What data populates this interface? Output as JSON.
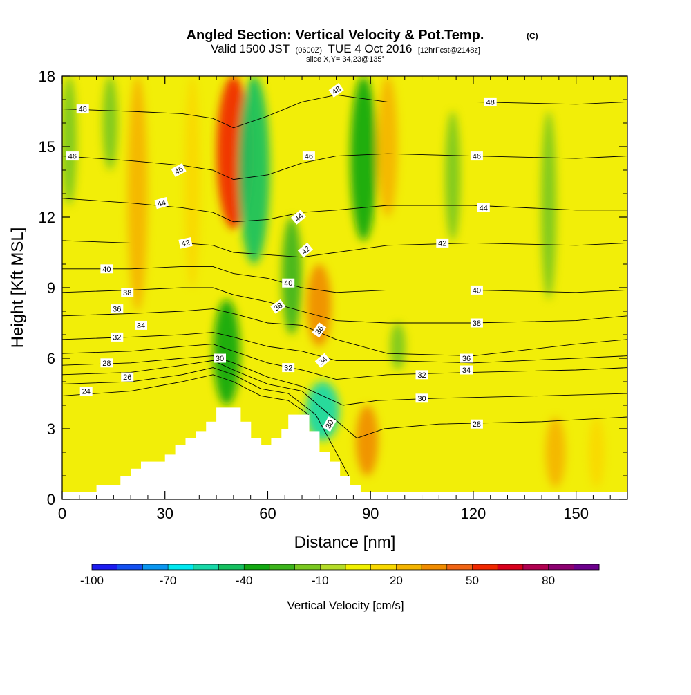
{
  "chart_data": {
    "type": "heatmap",
    "title": "Angled Section: Vertical Velocity & Pot.Temp.",
    "title_mark": "(C)",
    "subtitle_parts": [
      "Valid 1500 JST",
      "(0600Z)",
      "TUE 4 Oct 2016",
      "[12hrFcst@2148z]"
    ],
    "slice_text": "slice X,Y= 34,23@135°",
    "xlabel": "Distance [nm]",
    "ylabel": "Height [Kft MSL]",
    "xlim": [
      0,
      165
    ],
    "ylim": [
      0,
      18
    ],
    "x_ticks": [
      0,
      30,
      60,
      90,
      120,
      150
    ],
    "y_ticks": [
      0,
      3,
      6,
      9,
      12,
      15,
      18
    ],
    "grid": false,
    "colorbar": {
      "label": "Vertical Velocity [cm/s]",
      "tick_labels": [
        -100,
        -70,
        -40,
        -10,
        20,
        50,
        80
      ],
      "levels": [
        -100,
        -90,
        -80,
        -70,
        -60,
        -50,
        -40,
        -30,
        -20,
        -10,
        0,
        10,
        20,
        30,
        40,
        50,
        60,
        70,
        80,
        90
      ],
      "colors": [
        "#1c1cf0",
        "#1450f0",
        "#0a96f0",
        "#00e8f0",
        "#18d8a8",
        "#16c060",
        "#12a812",
        "#3cb41c",
        "#7ac820",
        "#b4dc28",
        "#f0f000",
        "#f8d800",
        "#f4b400",
        "#f08c00",
        "#f06414",
        "#f02800",
        "#d8001c",
        "#b00050",
        "#8c0070",
        "#6c008c"
      ]
    },
    "background_value_range": [
      -10,
      10
    ],
    "velocity_features": [
      {
        "x": 2,
        "y_range": [
          12.5,
          18
        ],
        "value": -15
      },
      {
        "x": 14,
        "y_range": [
          14,
          18
        ],
        "value": -15
      },
      {
        "x": 22,
        "y_range": [
          8,
          18
        ],
        "value": 25
      },
      {
        "x": 38,
        "y_range": [
          9,
          18
        ],
        "value": 15
      },
      {
        "x": 50,
        "y_range": [
          11.5,
          18
        ],
        "value": 55
      },
      {
        "x": 56,
        "y_range": [
          10,
          18
        ],
        "value": -50
      },
      {
        "x": 48,
        "y_range": [
          4,
          8.5
        ],
        "value": -40
      },
      {
        "x": 67,
        "y_range": [
          7,
          12
        ],
        "value": -25
      },
      {
        "x": 75,
        "y_range": [
          6.5,
          10
        ],
        "value": 35
      },
      {
        "x": 76,
        "y_range": [
          2.5,
          5
        ],
        "value": -55
      },
      {
        "x": 88,
        "y_range": [
          11,
          18
        ],
        "value": -40
      },
      {
        "x": 95,
        "y_range": [
          12,
          18
        ],
        "value": 25
      },
      {
        "x": 89,
        "y_range": [
          1,
          4
        ],
        "value": 30
      },
      {
        "x": 98,
        "y_range": [
          5.5,
          7.5
        ],
        "value": -15
      },
      {
        "x": 114,
        "y_range": [
          11,
          16.5
        ],
        "value": -15
      },
      {
        "x": 142,
        "y_range": [
          8.5,
          16.5
        ],
        "value": -15
      },
      {
        "x": 144,
        "y_range": [
          0.5,
          3.5
        ],
        "value": 25
      },
      {
        "x": 156,
        "y_range": [
          0.5,
          3.5
        ],
        "value": 15
      }
    ],
    "terrain": [
      {
        "x": [
          0,
          10
        ],
        "top": 0.3
      },
      {
        "x": [
          10,
          17
        ],
        "top": 0.6
      },
      {
        "x": [
          17,
          20
        ],
        "top": 1.0
      },
      {
        "x": [
          20,
          23
        ],
        "top": 1.3
      },
      {
        "x": [
          23,
          30
        ],
        "top": 1.6
      },
      {
        "x": [
          30,
          33
        ],
        "top": 1.9
      },
      {
        "x": [
          33,
          36
        ],
        "top": 2.3
      },
      {
        "x": [
          36,
          39
        ],
        "top": 2.6
      },
      {
        "x": [
          39,
          42
        ],
        "top": 2.9
      },
      {
        "x": [
          42,
          45
        ],
        "top": 3.3
      },
      {
        "x": [
          45,
          52
        ],
        "top": 3.9
      },
      {
        "x": [
          52,
          55
        ],
        "top": 3.3
      },
      {
        "x": [
          55,
          58
        ],
        "top": 2.6
      },
      {
        "x": [
          58,
          61
        ],
        "top": 2.3
      },
      {
        "x": [
          61,
          64
        ],
        "top": 2.6
      },
      {
        "x": [
          64,
          66
        ],
        "top": 3.0
      },
      {
        "x": [
          66,
          72
        ],
        "top": 3.6
      },
      {
        "x": [
          72,
          75
        ],
        "top": 2.9
      },
      {
        "x": [
          75,
          78
        ],
        "top": 2.0
      },
      {
        "x": [
          78,
          81
        ],
        "top": 1.6
      },
      {
        "x": [
          81,
          84
        ],
        "top": 1.0
      },
      {
        "x": [
          84,
          87
        ],
        "top": 0.6
      },
      {
        "x": [
          87,
          165
        ],
        "top": 0.3
      }
    ],
    "contours": [
      {
        "value": 24,
        "points": [
          [
            0,
            4.4
          ],
          [
            20,
            4.6
          ],
          [
            35,
            5.0
          ],
          [
            44,
            5.3
          ],
          [
            50,
            5.0
          ],
          [
            58,
            4.4
          ],
          [
            66,
            4.2
          ],
          [
            72,
            3.6
          ]
        ]
      },
      {
        "value": 26,
        "points": [
          [
            0,
            4.9
          ],
          [
            20,
            5.0
          ],
          [
            35,
            5.3
          ],
          [
            44,
            5.6
          ],
          [
            50,
            5.3
          ],
          [
            58,
            4.7
          ],
          [
            66,
            4.5
          ],
          [
            74,
            3.6
          ],
          [
            80,
            2.0
          ],
          [
            84,
            0.9
          ]
        ]
      },
      {
        "value": 28,
        "points": [
          [
            0,
            5.3
          ],
          [
            20,
            5.4
          ],
          [
            35,
            5.7
          ],
          [
            44,
            5.9
          ],
          [
            50,
            5.5
          ],
          [
            60,
            4.9
          ],
          [
            70,
            4.6
          ],
          [
            78,
            3.6
          ],
          [
            86,
            2.6
          ],
          [
            94,
            3.0
          ],
          [
            110,
            3.2
          ],
          [
            140,
            3.3
          ],
          [
            165,
            3.5
          ]
        ]
      },
      {
        "value": 30,
        "points": [
          [
            0,
            5.7
          ],
          [
            20,
            5.8
          ],
          [
            35,
            6.0
          ],
          [
            44,
            6.1
          ],
          [
            50,
            5.8
          ],
          [
            60,
            5.2
          ],
          [
            70,
            4.8
          ],
          [
            82,
            4.0
          ],
          [
            92,
            4.2
          ],
          [
            110,
            4.3
          ],
          [
            140,
            4.4
          ],
          [
            165,
            4.5
          ]
        ]
      },
      {
        "value": 32,
        "points": [
          [
            0,
            6.2
          ],
          [
            20,
            6.3
          ],
          [
            35,
            6.5
          ],
          [
            44,
            6.6
          ],
          [
            50,
            6.3
          ],
          [
            60,
            5.8
          ],
          [
            70,
            5.5
          ],
          [
            80,
            5.1
          ],
          [
            95,
            5.3
          ],
          [
            120,
            5.4
          ],
          [
            150,
            5.5
          ],
          [
            165,
            5.6
          ]
        ]
      },
      {
        "value": 34,
        "points": [
          [
            0,
            6.8
          ],
          [
            20,
            6.9
          ],
          [
            35,
            7.0
          ],
          [
            44,
            7.1
          ],
          [
            50,
            6.9
          ],
          [
            60,
            6.5
          ],
          [
            70,
            6.3
          ],
          [
            80,
            5.9
          ],
          [
            95,
            5.9
          ],
          [
            120,
            5.8
          ],
          [
            150,
            6.0
          ],
          [
            165,
            6.1
          ]
        ]
      },
      {
        "value": 36,
        "points": [
          [
            0,
            7.8
          ],
          [
            20,
            7.9
          ],
          [
            35,
            8.0
          ],
          [
            44,
            8.1
          ],
          [
            50,
            7.9
          ],
          [
            60,
            7.5
          ],
          [
            70,
            7.4
          ],
          [
            80,
            6.8
          ],
          [
            95,
            6.2
          ],
          [
            120,
            6.1
          ],
          [
            150,
            6.6
          ],
          [
            165,
            6.8
          ]
        ]
      },
      {
        "value": 38,
        "points": [
          [
            0,
            8.8
          ],
          [
            20,
            8.9
          ],
          [
            35,
            9.0
          ],
          [
            44,
            9.0
          ],
          [
            50,
            8.7
          ],
          [
            60,
            8.4
          ],
          [
            70,
            8.0
          ],
          [
            80,
            7.6
          ],
          [
            95,
            7.5
          ],
          [
            120,
            7.5
          ],
          [
            150,
            7.6
          ],
          [
            165,
            7.8
          ]
        ]
      },
      {
        "value": 40,
        "points": [
          [
            0,
            9.8
          ],
          [
            20,
            9.8
          ],
          [
            35,
            9.9
          ],
          [
            44,
            9.9
          ],
          [
            50,
            9.6
          ],
          [
            60,
            9.4
          ],
          [
            70,
            9.0
          ],
          [
            80,
            8.8
          ],
          [
            95,
            8.9
          ],
          [
            120,
            8.9
          ],
          [
            150,
            8.8
          ],
          [
            165,
            8.9
          ]
        ]
      },
      {
        "value": 42,
        "points": [
          [
            0,
            11.0
          ],
          [
            20,
            10.9
          ],
          [
            35,
            10.9
          ],
          [
            44,
            10.8
          ],
          [
            50,
            10.5
          ],
          [
            60,
            10.4
          ],
          [
            70,
            10.3
          ],
          [
            80,
            10.5
          ],
          [
            95,
            10.8
          ],
          [
            120,
            10.9
          ],
          [
            150,
            10.8
          ],
          [
            165,
            10.9
          ]
        ]
      },
      {
        "value": 44,
        "points": [
          [
            0,
            12.8
          ],
          [
            20,
            12.6
          ],
          [
            35,
            12.4
          ],
          [
            44,
            12.2
          ],
          [
            50,
            11.8
          ],
          [
            60,
            11.9
          ],
          [
            70,
            12.2
          ],
          [
            80,
            12.3
          ],
          [
            95,
            12.5
          ],
          [
            120,
            12.5
          ],
          [
            150,
            12.3
          ],
          [
            165,
            12.3
          ]
        ]
      },
      {
        "value": 46,
        "points": [
          [
            0,
            14.6
          ],
          [
            20,
            14.4
          ],
          [
            35,
            14.2
          ],
          [
            44,
            14.0
          ],
          [
            50,
            13.6
          ],
          [
            60,
            13.8
          ],
          [
            70,
            14.3
          ],
          [
            80,
            14.6
          ],
          [
            95,
            14.7
          ],
          [
            120,
            14.6
          ],
          [
            150,
            14.5
          ],
          [
            165,
            14.6
          ]
        ]
      },
      {
        "value": 48,
        "points": [
          [
            0,
            16.6
          ],
          [
            20,
            16.5
          ],
          [
            35,
            16.4
          ],
          [
            44,
            16.2
          ],
          [
            50,
            15.8
          ],
          [
            60,
            16.3
          ],
          [
            70,
            16.9
          ],
          [
            80,
            17.2
          ],
          [
            95,
            16.9
          ],
          [
            120,
            16.9
          ],
          [
            150,
            16.8
          ],
          [
            165,
            16.9
          ]
        ]
      }
    ],
    "contour_labels": [
      {
        "text": "48",
        "x": 6,
        "y": 16.6,
        "rot": 0
      },
      {
        "text": "46",
        "x": 3,
        "y": 14.6,
        "rot": 0
      },
      {
        "text": "46",
        "x": 34,
        "y": 14.0,
        "rot": -28
      },
      {
        "text": "44",
        "x": 29,
        "y": 12.6,
        "rot": -15
      },
      {
        "text": "42",
        "x": 36,
        "y": 10.9,
        "rot": -12
      },
      {
        "text": "40",
        "x": 13,
        "y": 9.8,
        "rot": 0
      },
      {
        "text": "38",
        "x": 19,
        "y": 8.8,
        "rot": 0
      },
      {
        "text": "36",
        "x": 16,
        "y": 8.1,
        "rot": 0
      },
      {
        "text": "34",
        "x": 23,
        "y": 7.4,
        "rot": 0
      },
      {
        "text": "32",
        "x": 16,
        "y": 6.9,
        "rot": 0
      },
      {
        "text": "30",
        "x": 46,
        "y": 6.0,
        "rot": 0
      },
      {
        "text": "28",
        "x": 13,
        "y": 5.8,
        "rot": 0
      },
      {
        "text": "26",
        "x": 19,
        "y": 5.2,
        "rot": 0
      },
      {
        "text": "24",
        "x": 7,
        "y": 4.6,
        "rot": 0
      },
      {
        "text": "48",
        "x": 80,
        "y": 17.4,
        "rot": -35
      },
      {
        "text": "46",
        "x": 72,
        "y": 14.6,
        "rot": 0
      },
      {
        "text": "44",
        "x": 69,
        "y": 12.0,
        "rot": -40
      },
      {
        "text": "42",
        "x": 71,
        "y": 10.6,
        "rot": -40
      },
      {
        "text": "40",
        "x": 66,
        "y": 9.2,
        "rot": 0
      },
      {
        "text": "38",
        "x": 63,
        "y": 8.2,
        "rot": -35
      },
      {
        "text": "36",
        "x": 75,
        "y": 7.2,
        "rot": -55
      },
      {
        "text": "34",
        "x": 76,
        "y": 5.9,
        "rot": -40
      },
      {
        "text": "32",
        "x": 66,
        "y": 5.6,
        "rot": 0
      },
      {
        "text": "30",
        "x": 78,
        "y": 3.2,
        "rot": -60
      },
      {
        "text": "48",
        "x": 125,
        "y": 16.9,
        "rot": 0
      },
      {
        "text": "46",
        "x": 121,
        "y": 14.6,
        "rot": 0
      },
      {
        "text": "44",
        "x": 123,
        "y": 12.4,
        "rot": 0
      },
      {
        "text": "42",
        "x": 111,
        "y": 10.9,
        "rot": 0
      },
      {
        "text": "40",
        "x": 121,
        "y": 8.9,
        "rot": 0
      },
      {
        "text": "38",
        "x": 121,
        "y": 7.5,
        "rot": 0
      },
      {
        "text": "36",
        "x": 118,
        "y": 6.0,
        "rot": 0
      },
      {
        "text": "34",
        "x": 118,
        "y": 5.5,
        "rot": 0
      },
      {
        "text": "32",
        "x": 105,
        "y": 5.3,
        "rot": 0
      },
      {
        "text": "30",
        "x": 105,
        "y": 4.3,
        "rot": 0
      },
      {
        "text": "28",
        "x": 121,
        "y": 3.2,
        "rot": 0
      }
    ]
  }
}
